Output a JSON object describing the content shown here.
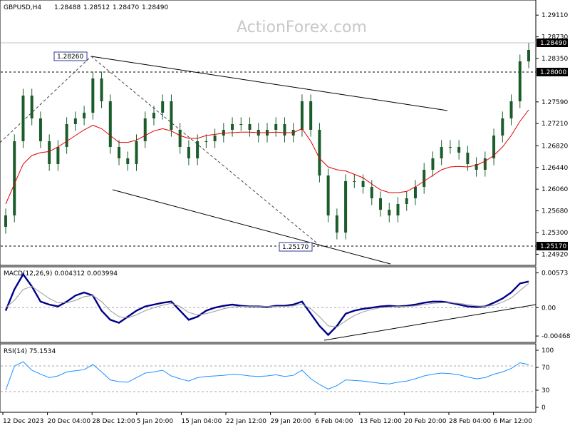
{
  "chart_data": {
    "type": "line",
    "header": {
      "symbol": "GBPUSD,H4",
      "open": "1.28488",
      "high": "1.28512",
      "low": "1.28470",
      "close": "1.28490"
    },
    "watermark": "ActionForex.com",
    "price_panel": {
      "ylim": [
        1.2475,
        1.2935
      ],
      "y_ticks": [
        "1.29110",
        "1.28730",
        "1.28350",
        "1.27590",
        "1.27210",
        "1.26820",
        "1.26440",
        "1.26060",
        "1.25680",
        "1.25300",
        "1.24920"
      ],
      "current_price": "1.28490",
      "resistance_line": "1.28000",
      "support_line": "1.25170",
      "annotations": [
        "1.28260",
        "1.25170"
      ],
      "series": [
        {
          "type": "candlestick",
          "x": [
            "12 Dec 2023",
            "13 Dec 2023",
            "14 Dec 2023",
            "15 Dec 2023",
            "18 Dec 2023",
            "19 Dec 2023",
            "20 Dec 2023",
            "21 Dec 2023",
            "22 Dec 2023",
            "26 Dec 2023",
            "27 Dec 2023",
            "28 Dec 2023",
            "29 Dec 2023",
            "2 Jan 2024",
            "3 Jan 2024",
            "4 Jan 2024",
            "5 Jan 2024",
            "8 Jan 2024",
            "9 Jan 2024",
            "10 Jan 2024",
            "11 Jan 2024",
            "12 Jan 2024",
            "15 Jan 2024",
            "16 Jan 2024",
            "17 Jan 2024",
            "18 Jan 2024",
            "19 Jan 2024",
            "22 Jan 2024",
            "23 Jan 2024",
            "24 Jan 2024",
            "25 Jan 2024",
            "26 Jan 2024",
            "29 Jan 2024",
            "30 Jan 2024",
            "31 Jan 2024",
            "1 Feb 2024",
            "2 Feb 2024",
            "5 Feb 2024",
            "6 Feb 2024",
            "7 Feb 2024",
            "8 Feb 2024",
            "9 Feb 2024",
            "12 Feb 2024",
            "13 Feb 2024",
            "14 Feb 2024",
            "15 Feb 2024",
            "16 Feb 2024",
            "19 Feb 2024",
            "20 Feb 2024",
            "21 Feb 2024",
            "22 Feb 2024",
            "23 Feb 2024",
            "26 Feb 2024",
            "27 Feb 2024",
            "28 Feb 2024",
            "29 Feb 2024",
            "1 Mar 2024",
            "4 Mar 2024",
            "5 Mar 2024",
            "6 Mar 2024",
            "7 Mar 2024"
          ],
          "close": [
            1.256,
            1.269,
            1.277,
            1.273,
            1.269,
            1.265,
            1.268,
            1.272,
            1.273,
            1.274,
            1.28,
            1.276,
            1.268,
            1.266,
            1.265,
            1.269,
            1.273,
            1.274,
            1.276,
            1.271,
            1.268,
            1.266,
            1.269,
            1.269,
            1.27,
            1.271,
            1.272,
            1.272,
            1.271,
            1.27,
            1.271,
            1.272,
            1.27,
            1.271,
            1.276,
            1.271,
            1.263,
            1.256,
            1.253,
            1.262,
            1.262,
            1.261,
            1.259,
            1.257,
            1.256,
            1.258,
            1.259,
            1.261,
            1.264,
            1.266,
            1.268,
            1.268,
            1.267,
            1.265,
            1.264,
            1.266,
            1.27,
            1.273,
            1.276,
            1.283,
            1.285
          ]
        },
        {
          "name": "",
          "type": "line",
          "color": "#e00000",
          "values": [
            1.258,
            1.2615,
            1.265,
            1.2665,
            1.267,
            1.2672,
            1.268,
            1.269,
            1.27,
            1.271,
            1.2718,
            1.2712,
            1.27,
            1.2688,
            1.2688,
            1.2692,
            1.27,
            1.2708,
            1.2712,
            1.2708,
            1.27,
            1.2695,
            1.2695,
            1.27,
            1.2702,
            1.2704,
            1.2705,
            1.2706,
            1.2706,
            1.2705,
            1.2705,
            1.2706,
            1.2705,
            1.2705,
            1.2712,
            1.269,
            1.266,
            1.2645,
            1.264,
            1.2638,
            1.2632,
            1.2626,
            1.2615,
            1.2605,
            1.26,
            1.26,
            1.2602,
            1.261,
            1.262,
            1.263,
            1.264,
            1.2645,
            1.2646,
            1.2645,
            1.2648,
            1.2655,
            1.2665,
            1.268,
            1.27,
            1.2725,
            1.2745
          ]
        }
      ]
    },
    "macd_panel": {
      "label": "MACD(12,26,9) 0.004312 0.003994",
      "ylim": [
        -0.0055,
        0.0065
      ],
      "y_ticks": [
        "0.00573",
        "0.00",
        "-0.004685"
      ],
      "macd": [
        -0.0005,
        0.003,
        0.0055,
        0.0035,
        0.001,
        0.0005,
        0.0002,
        0.001,
        0.002,
        0.0025,
        0.002,
        -0.0005,
        -0.002,
        -0.0025,
        -0.0015,
        -0.0005,
        0.0002,
        0.0005,
        0.0008,
        0.001,
        -0.0005,
        -0.002,
        -0.0015,
        -0.0005,
        0.0,
        0.0003,
        0.0005,
        0.0003,
        0.0002,
        0.0002,
        0.0001,
        0.0003,
        0.0003,
        0.0005,
        0.001,
        -0.001,
        -0.003,
        -0.0045,
        -0.003,
        -0.001,
        -0.0005,
        -0.0002,
        0.0,
        0.0002,
        0.0003,
        0.0002,
        0.0003,
        0.0005,
        0.0008,
        0.001,
        0.001,
        0.0008,
        0.0005,
        0.0002,
        0.0001,
        0.0002,
        0.0008,
        0.0015,
        0.0025,
        0.004,
        0.0043
      ],
      "signal": [
        0.0,
        0.0012,
        0.003,
        0.0035,
        0.0025,
        0.0015,
        0.0008,
        0.0008,
        0.0012,
        0.0018,
        0.002,
        0.001,
        -0.0005,
        -0.0015,
        -0.0017,
        -0.0012,
        -0.0005,
        0.0,
        0.0004,
        0.0007,
        0.0002,
        -0.0008,
        -0.0012,
        -0.001,
        -0.0006,
        -0.0002,
        0.0001,
        0.0002,
        0.0002,
        0.0002,
        0.0002,
        0.0002,
        0.0002,
        0.0003,
        0.0006,
        -0.0002,
        -0.0015,
        -0.003,
        -0.0032,
        -0.0022,
        -0.0013,
        -0.0007,
        -0.0003,
        0.0,
        0.0001,
        0.0002,
        0.0002,
        0.0003,
        0.0005,
        0.0007,
        0.0008,
        0.0008,
        0.0007,
        0.0005,
        0.0003,
        0.0002,
        0.0004,
        0.0009,
        0.0016,
        0.0028,
        0.004
      ]
    },
    "rsi_panel": {
      "label": "RSI(14) 75.1534",
      "ylim": [
        0,
        100
      ],
      "y_ticks": [
        "100",
        "70",
        "30",
        "0"
      ],
      "values": [
        30,
        72,
        80,
        65,
        58,
        52,
        55,
        62,
        64,
        66,
        75,
        62,
        48,
        45,
        44,
        52,
        60,
        62,
        65,
        55,
        50,
        46,
        52,
        54,
        55,
        56,
        58,
        57,
        55,
        54,
        55,
        57,
        54,
        56,
        65,
        50,
        40,
        32,
        38,
        48,
        47,
        46,
        44,
        42,
        41,
        44,
        46,
        50,
        55,
        58,
        60,
        59,
        57,
        53,
        50,
        52,
        58,
        62,
        68,
        78,
        75
      ]
    },
    "x_tick_labels": [
      "12 Dec 2023",
      "20 Dec 04:00",
      "28 Dec 12:00",
      "5 Jan 20:00",
      "15 Jan 04:00",
      "22 Jan 12:00",
      "29 Jan 20:00",
      "6 Feb 04:00",
      "13 Feb 12:00",
      "20 Feb 20:00",
      "28 Feb 04:00",
      "6 Mar 12:00"
    ]
  }
}
